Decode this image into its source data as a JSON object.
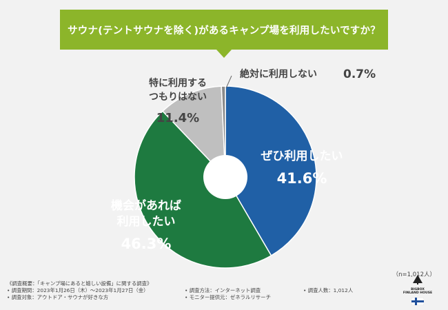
{
  "title": "サウナ(テントサウナを除く)があるキャンプ場を利用したいですか？",
  "sample_size": "（n=1,012人）",
  "colors": {
    "accent": "#8cb52a",
    "slice_1": "#2060a6",
    "slice_2": "#1e7a40",
    "slice_3": "#bfbfbf",
    "slice_4": "#8a8a8a"
  },
  "chart_data": {
    "type": "pie",
    "title": "サウナ(テントサウナを除く)があるキャンプ場を利用したいですか？",
    "donut": true,
    "slices": [
      {
        "label": "ぜひ利用したい",
        "value": 41.6,
        "display": "41.6%"
      },
      {
        "label": "機会があれば利用したい",
        "value": 46.3,
        "display": "46.3%"
      },
      {
        "label": "特に利用するつもりはない",
        "value": 11.4,
        "display": "11.4%"
      },
      {
        "label": "絶対に利用しない",
        "value": 0.7,
        "display": "0.7%"
      }
    ]
  },
  "labels": {
    "slice_1_line1": "ぜひ利用したい",
    "slice_1_pct": "41.6%",
    "slice_2_line1": "機会があれば",
    "slice_2_line2": "利用したい",
    "slice_2_pct": "46.3%",
    "slice_3_line1": "特に利用する",
    "slice_3_line2": "つもりはない",
    "slice_3_pct": "11.4%",
    "slice_4_text": "絶対に利用しない",
    "slice_4_pct": "0.7%"
  },
  "footer": {
    "overview": "《調査概要：「キャンプ場にあると嬉しい設備」に関する調査》",
    "period": "• 調査期間：2023年1月26日（木）～2023年1月27日（金）",
    "target": "• 調査対象：アウトドア・サウナが好きな方",
    "method": "• 調査方法：インターネット調査",
    "provider": "• モニター提供元：ゼネラルリサーチ",
    "count": "• 調査人数：1,012人"
  },
  "logo": {
    "line1": "BIGBOX",
    "line2": "FINLAND HOUSE"
  }
}
